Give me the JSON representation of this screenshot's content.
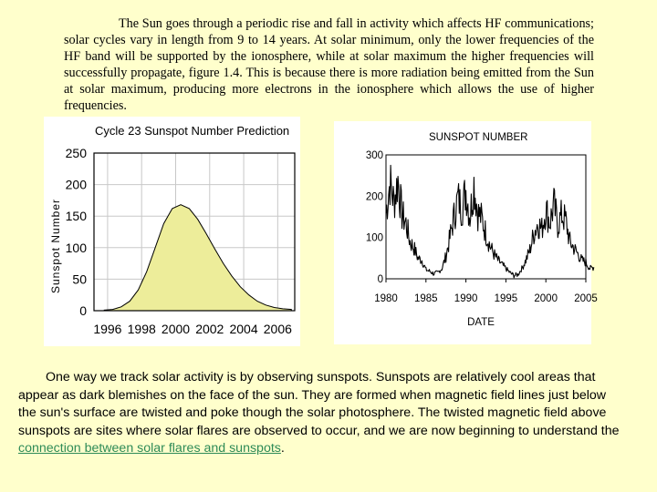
{
  "paragraph1": "The Sun goes through a periodic rise and fall in activity which affects HF communications; solar cycles vary in length from 9 to 14 years. At solar minimum, only the lower frequencies of the HF band will be supported by the ionosphere, while at solar maximum the higher frequencies will successfully propagate, figure 1.4. This is because there is more radiation being emitted from the Sun at solar maximum, producing more electrons in the ionosphere which allows the use of higher frequencies.",
  "paragraph2": {
    "text": "One way we track solar activity is by observing sunspots. Sunspots are relatively cool areas that appear as dark blemishes on the face of the sun. They are formed when magnetic field lines just below the sun's surface are twisted and poke though the solar photosphere. The twisted magnetic field above sunspots are sites where solar flares are observed to occur, and we are now beginning to understand the ",
    "link": "connection between solar flares and sunspots",
    "end": "."
  },
  "colors": {
    "background": "#ffffcc",
    "fill": "#eded9a",
    "link": "#2e8b57"
  },
  "chart_data": [
    {
      "type": "area",
      "title": "Cycle 23 Sunspot Number Prediction",
      "ylabel": "Sunspot Number",
      "xlabel": "",
      "x_ticks": [
        "1996",
        "1998",
        "2000",
        "2002",
        "2004",
        "2006"
      ],
      "y_ticks": [
        "250",
        "200",
        "150",
        "100",
        "50",
        "0"
      ],
      "xlim": [
        1995.2,
        2007
      ],
      "ylim": [
        0,
        250
      ],
      "grid": true,
      "x": [
        1995.8,
        1996.3,
        1996.8,
        1997.3,
        1997.8,
        1998.3,
        1998.8,
        1999.3,
        1999.8,
        2000.3,
        2000.8,
        2001.3,
        2001.8,
        2002.3,
        2002.8,
        2003.3,
        2003.8,
        2004.3,
        2004.8,
        2005.3,
        2005.8,
        2006.3,
        2006.8
      ],
      "y": [
        1,
        2,
        6,
        15,
        33,
        62,
        100,
        138,
        162,
        168,
        162,
        145,
        122,
        98,
        75,
        55,
        38,
        25,
        15,
        9,
        5,
        3,
        2
      ]
    },
    {
      "type": "line",
      "title": "SUNSPOT NUMBER",
      "xlabel": "DATE",
      "ylabel": "",
      "x_ticks": [
        "1980",
        "1985",
        "1990",
        "1995",
        "2000",
        "2005"
      ],
      "y_ticks": [
        "300",
        "200",
        "100",
        "0"
      ],
      "xlim": [
        1980,
        2005
      ],
      "ylim": [
        0,
        300
      ],
      "grid": false,
      "x": [
        1980,
        1980.5,
        1981,
        1981.5,
        1982,
        1982.5,
        1983,
        1983.5,
        1984,
        1984.5,
        1985,
        1985.5,
        1986,
        1986.5,
        1987,
        1987.5,
        1988,
        1988.5,
        1989,
        1989.5,
        1990,
        1990.5,
        1991,
        1991.5,
        1992,
        1992.5,
        1993,
        1993.5,
        1994,
        1994.5,
        1995,
        1995.5,
        1996,
        1996.5,
        1997,
        1997.5,
        1998,
        1998.5,
        1999,
        1999.5,
        2000,
        2000.5,
        2001,
        2001.5,
        2002,
        2002.5,
        2003,
        2003.5,
        2004,
        2004.5,
        2005,
        2005.5,
        2006
      ],
      "y": [
        160,
        235,
        185,
        240,
        155,
        135,
        90,
        75,
        50,
        45,
        22,
        18,
        12,
        15,
        25,
        55,
        100,
        150,
        195,
        170,
        215,
        150,
        230,
        160,
        145,
        110,
        80,
        60,
        45,
        35,
        25,
        15,
        8,
        10,
        25,
        45,
        70,
        110,
        135,
        120,
        170,
        135,
        180,
        130,
        155,
        140,
        90,
        75,
        60,
        45,
        40,
        25,
        28
      ]
    }
  ]
}
